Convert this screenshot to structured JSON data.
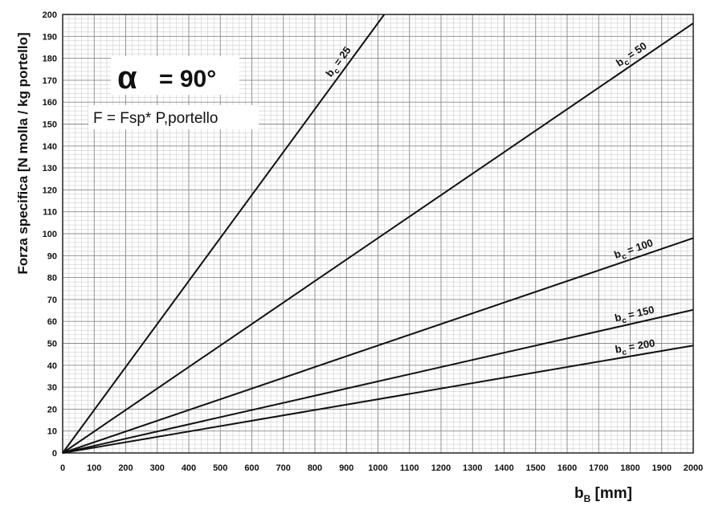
{
  "annotations": {
    "alpha_symbol": "α",
    "alpha_value": "= 90°",
    "formula": "F = Fsp* P,portello"
  },
  "chart_data": {
    "type": "line",
    "xlabel_main": "b",
    "xlabel_sub": "B",
    "xlabel_unit": " [mm]",
    "ylabel": "Forza specifica [N molla / kg portello]",
    "xlim": [
      0,
      2000
    ],
    "ylim": [
      0,
      200
    ],
    "xticks": [
      0,
      100,
      200,
      300,
      400,
      500,
      600,
      700,
      800,
      900,
      1000,
      1100,
      1200,
      1300,
      1400,
      1500,
      1600,
      1700,
      1800,
      1900,
      2000
    ],
    "yticks": [
      0,
      10,
      20,
      30,
      40,
      50,
      60,
      70,
      80,
      90,
      100,
      110,
      120,
      130,
      140,
      150,
      160,
      170,
      180,
      190,
      200
    ],
    "grid": true,
    "series": [
      {
        "name": "bc = 25",
        "label_main": "b",
        "label_sub": "c",
        "label_rest": " = 25",
        "x": [
          0,
          1020
        ],
        "y": [
          0,
          200
        ]
      },
      {
        "name": "bc = 50",
        "label_main": "b",
        "label_sub": "c",
        "label_rest": " = 50",
        "x": [
          0,
          2000
        ],
        "y": [
          0,
          196
        ]
      },
      {
        "name": "bc = 100",
        "label_main": "b",
        "label_sub": "c",
        "label_rest": " = 100",
        "x": [
          0,
          2000
        ],
        "y": [
          0,
          98
        ]
      },
      {
        "name": "bc = 150",
        "label_main": "b",
        "label_sub": "c",
        "label_rest": " = 150",
        "x": [
          0,
          2000
        ],
        "y": [
          0,
          65.3
        ]
      },
      {
        "name": "bc = 200",
        "label_main": "b",
        "label_sub": "c",
        "label_rest": " = 200",
        "x": [
          0,
          2000
        ],
        "y": [
          0,
          49
        ]
      }
    ]
  }
}
